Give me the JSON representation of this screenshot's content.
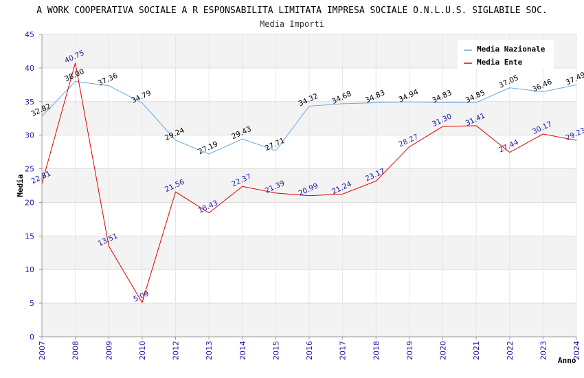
{
  "chart_data": {
    "type": "line",
    "title": "A WORK COOPERATIVA SOCIALE A R ESPONSABILITA LIMITATA IMPRESA SOCIALE O.N.L.U.S. SIGLABILE SOC.",
    "subtitle": "Media Importi",
    "xlabel": "Anno",
    "ylabel": "Media",
    "ylim": [
      0,
      45
    ],
    "yticks": [
      "0",
      "5",
      "10",
      "15",
      "20",
      "25",
      "30",
      "35",
      "40",
      "45"
    ],
    "categories": [
      "2007",
      "2008",
      "2009",
      "2010",
      "2012",
      "2013",
      "2014",
      "2015",
      "2016",
      "2017",
      "2018",
      "2019",
      "2020",
      "2021",
      "2022",
      "2023",
      "2024"
    ],
    "legend_position": "top-right",
    "grid": true,
    "series": [
      {
        "name": "Media Nazionale",
        "color": "#6aa8e0",
        "values": [
          32.82,
          38.0,
          37.36,
          34.79,
          29.24,
          27.19,
          29.43,
          27.71,
          34.32,
          34.68,
          34.83,
          34.94,
          34.83,
          34.85,
          37.05,
          36.46,
          37.49
        ],
        "labels": [
          "32.82",
          "38.00",
          "37.36",
          "34.79",
          "29.24",
          "27.19",
          "29.43",
          "27.71",
          "34.32",
          "34.68",
          "34.83",
          "34.94",
          "34.83",
          "34.85",
          "37.05",
          "36.46",
          "37.49"
        ]
      },
      {
        "name": "Media Ente",
        "color": "#e00000",
        "values": [
          22.81,
          40.75,
          13.51,
          5.09,
          21.56,
          18.43,
          22.37,
          21.39,
          20.99,
          21.24,
          23.17,
          28.27,
          31.3,
          31.41,
          27.44,
          30.17,
          29.23
        ],
        "labels": [
          "22.81",
          "40.75",
          "13.51",
          "5.09",
          "21.56",
          "18.43",
          "22.37",
          "21.39",
          "20.99",
          "21.24",
          "23.17",
          "28.27",
          "31.30",
          "31.41",
          "27.44",
          "30.17",
          "29.23"
        ]
      }
    ]
  }
}
